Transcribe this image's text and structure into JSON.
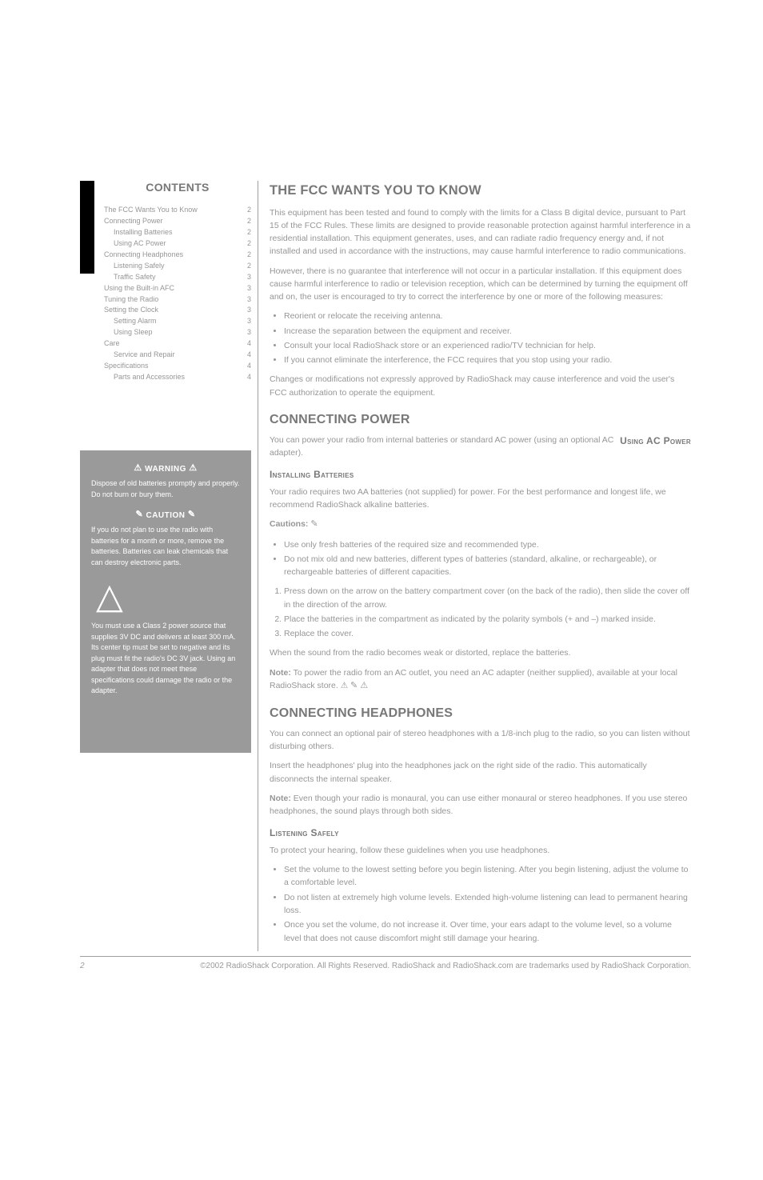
{
  "sidebar": {
    "contents_label": "CONTENTS",
    "items": [
      {
        "label": "The FCC Wants You to Know",
        "page": "2",
        "sub": false
      },
      {
        "label": "Connecting Power",
        "page": "2",
        "sub": false
      },
      {
        "label": "Installing Batteries",
        "page": "2",
        "sub": true
      },
      {
        "label": "Using AC Power",
        "page": "2",
        "sub": true
      },
      {
        "label": "Connecting Headphones",
        "page": "2",
        "sub": false
      },
      {
        "label": "Listening Safely",
        "page": "2",
        "sub": true
      },
      {
        "label": "Traffic Safety",
        "page": "3",
        "sub": true
      },
      {
        "label": "Using the Built-in AFC",
        "page": "3",
        "sub": false
      },
      {
        "label": "Tuning the Radio",
        "page": "3",
        "sub": false
      },
      {
        "label": "Setting the Clock",
        "page": "3",
        "sub": false
      },
      {
        "label": "Setting Alarm",
        "page": "3",
        "sub": true
      },
      {
        "label": "Using Sleep",
        "page": "3",
        "sub": true
      },
      {
        "label": "Care",
        "page": "4",
        "sub": false
      },
      {
        "label": "Service and Repair",
        "page": "4",
        "sub": true
      },
      {
        "label": "Specifications",
        "page": "4",
        "sub": false
      },
      {
        "label": "Parts and Accessories",
        "page": "4",
        "sub": true
      }
    ],
    "warning": {
      "warning_label": "WARNING",
      "warning_text": "Dispose of old batteries promptly and properly. Do not burn or bury them.",
      "caution_label": "CAUTION",
      "caution_text_1": "If you do not plan to use the radio with batteries for a month or more, remove the batteries. Batteries can leak chemicals that can destroy electronic parts.",
      "caution_text_2": "You must use a Class 2 power source that supplies 3V DC and delivers at least 300 mA. Its center tip must be set to negative and its plug must fit the radio's DC 3V jack. Using an adapter that does not meet these specifications could damage the radio or the adapter."
    }
  },
  "main": {
    "fcc_heading": "THE FCC WANTS YOU TO KNOW",
    "fcc_p1": "This equipment has been tested and found to comply with the limits for a Class B digital device, pursuant to Part 15 of the FCC Rules. These limits are designed to provide reasonable protection against harmful interference in a residential installation. This equipment generates, uses, and can radiate radio frequency energy and, if not installed and used in accordance with the instructions, may cause harmful interference to radio communications.",
    "fcc_p2": "However, there is no guarantee that interference will not occur in a particular installation. If this equipment does cause harmful interference to radio or television reception, which can be determined by turning the equipment off and on, the user is encouraged to try to correct the interference by one or more of the following measures:",
    "fcc_list": [
      "Reorient or relocate the receiving antenna.",
      "Increase the separation between the equipment and receiver.",
      "Consult your local RadioShack store or an experienced radio/TV technician for help.",
      "If you cannot eliminate the interference, the FCC requires that you stop using your radio."
    ],
    "fcc_p3": "Changes or modifications not expressly approved by RadioShack may cause interference and void the user's FCC authorization to operate the equipment.",
    "connecting_power_heading": "CONNECTING POWER",
    "using_ac_power_heading": "Using AC Power",
    "connecting_power_body": "You can power your radio from internal batteries or standard AC power (using an optional AC adapter).",
    "installing_batteries_heading": "Installing Batteries",
    "batteries_p1": "Your radio requires two AA batteries (not supplied) for power. For the best performance and longest life, we recommend RadioShack alkaline batteries.",
    "batteries_caution_prefix": "Cautions:",
    "batteries_cautions": [
      "Use only fresh batteries of the required size and recommended type.",
      "Do not mix old and new batteries, different types of batteries (standard, alkaline, or rechargeable), or rechargeable batteries of different capacities."
    ],
    "batteries_ol": [
      "Press down on the arrow on the battery compartment cover (on the back of the radio), then slide the cover off in the direction of the arrow.",
      "Place the batteries in the compartment as indicated by the polarity symbols (+ and –) marked inside.",
      "Replace the cover."
    ],
    "batteries_p2": "When the sound from the radio becomes weak or distorted, replace the batteries.",
    "batteries_note_prefix": "Note:",
    "batteries_note": " To power the radio from an AC outlet, you need an AC adapter (neither supplied), available at your local RadioShack store.  ⚠",
    "headphones_heading": "CONNECTING HEADPHONES",
    "headphones_p1": "You can connect an optional pair of stereo headphones with a 1/8-inch plug to the radio, so you can listen without disturbing others.",
    "headphones_p2": "Insert the headphones' plug into the headphones jack on the right side of the radio. This automatically disconnects the internal speaker.",
    "headphones_note_prefix": "Note:",
    "headphones_note": " Even though your radio is monaural, you can use either monaural or stereo headphones. If you use stereo headphones, the sound plays through both sides.",
    "listening_safely_heading": "Listening Safely",
    "listening_p1": "To protect your hearing, follow these guidelines when you use headphones.",
    "listening_list": [
      "Set the volume to the lowest setting before you begin listening. After you begin listening, adjust the volume to a comfortable level.",
      "Do not listen at extremely high volume levels. Extended high-volume listening can lead to permanent hearing loss.",
      "Once you set the volume, do not increase it. Over time, your ears adapt to the volume level, so a volume level that does not cause discomfort might still damage your hearing."
    ]
  },
  "footer": {
    "page_number": "2",
    "credit": "©2002 RadioShack Corporation. All Rights Reserved. RadioShack and RadioShack.com are trademarks used by RadioShack Corporation."
  },
  "style": {
    "text_color": "#969696",
    "heading_color": "#787878",
    "grey_box_bg": "#9a9a9a",
    "black_bar": "#000000",
    "rule_color": "#a0a0a0",
    "page_bg": "#ffffff"
  }
}
